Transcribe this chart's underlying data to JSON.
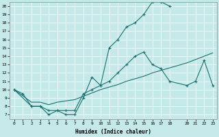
{
  "xlabel": "Humidex (Indice chaleur)",
  "bg_color": "#c5e8e8",
  "line_color": "#1a7070",
  "grid_color": "#b0d8d8",
  "xlim": [
    -0.5,
    23.5
  ],
  "ylim": [
    6.5,
    20.5
  ],
  "xticks": [
    0,
    1,
    2,
    3,
    4,
    5,
    6,
    7,
    8,
    9,
    10,
    11,
    12,
    13,
    14,
    15,
    16,
    17,
    18,
    20,
    21,
    22,
    23
  ],
  "yticks": [
    7,
    8,
    9,
    10,
    11,
    12,
    13,
    14,
    15,
    16,
    17,
    18,
    19,
    20
  ],
  "line1_x": [
    0,
    1,
    2,
    3,
    4,
    5,
    6,
    7,
    8,
    9,
    10,
    11,
    12,
    13,
    14,
    15,
    16,
    17,
    18
  ],
  "line1_y": [
    10,
    9.5,
    8,
    8,
    7,
    7.5,
    7,
    7,
    9,
    11.5,
    10.5,
    15,
    16,
    17.5,
    18,
    19,
    20.5,
    20.5,
    20
  ],
  "line2_x": [
    0,
    2,
    3,
    4,
    5,
    6,
    7,
    8,
    9,
    10,
    11,
    12,
    13,
    14,
    15,
    16,
    17,
    18,
    20,
    21,
    22,
    23
  ],
  "line2_y": [
    10,
    8,
    8,
    7.5,
    7.5,
    7.5,
    7.5,
    9.5,
    10,
    10.5,
    11,
    12,
    13,
    14,
    14.5,
    13,
    12.5,
    11,
    10.5,
    11,
    13.5,
    10.5
  ],
  "line3_x": [
    0,
    2,
    3,
    4,
    5,
    7,
    8,
    9,
    10,
    11,
    12,
    13,
    14,
    15,
    16,
    17,
    18,
    20,
    21,
    22,
    23
  ],
  "line3_y": [
    10,
    8.5,
    8.5,
    8.2,
    8.5,
    8.8,
    9.2,
    9.6,
    10.0,
    10.3,
    10.6,
    11.0,
    11.3,
    11.6,
    12.0,
    12.3,
    12.6,
    13.2,
    13.6,
    14.0,
    14.4
  ]
}
